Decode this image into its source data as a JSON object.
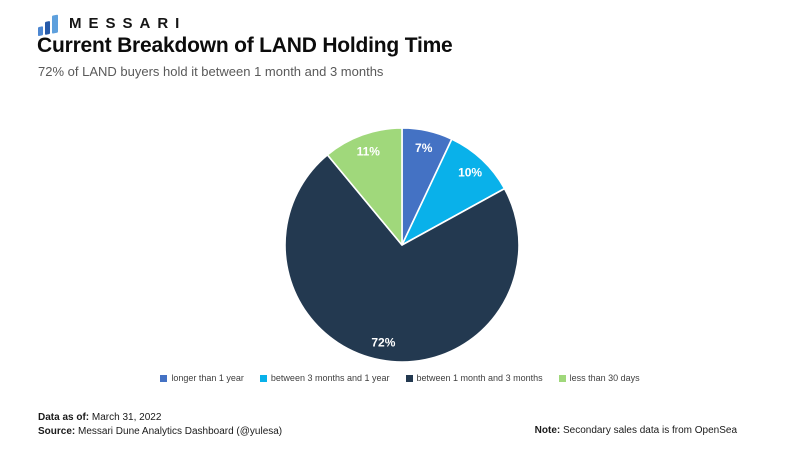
{
  "brand": {
    "logo_text": "MESSARI",
    "logo_icon_colors": {
      "bar1": "#4d87d1",
      "bar2": "#265aa9",
      "bar3": "#5ea0dd"
    }
  },
  "header": {
    "title": "Current Breakdown of LAND Holding Time",
    "subtitle": "72% of LAND buyers hold it between 1 month and 3 months"
  },
  "chart_data": {
    "type": "pie",
    "title": "Current Breakdown of LAND Holding Time",
    "start_angle_deg": 0,
    "direction": "clockwise",
    "legend_position": "bottom",
    "label_color": "#ffffff",
    "slices": [
      {
        "label": "longer than 1 year",
        "value": 7,
        "display": "7%",
        "color": "#4472c4"
      },
      {
        "label": "between 3 months and 1 year",
        "value": 10,
        "display": "10%",
        "color": "#09b1ea"
      },
      {
        "label": "between 1 month and 3 months",
        "value": 72,
        "display": "72%",
        "color": "#233950"
      },
      {
        "label": "less than 30 days",
        "value": 11,
        "display": "11%",
        "color": "#a0d87b"
      }
    ]
  },
  "footer": {
    "data_as_of_label": "Data as of:",
    "data_as_of_value": "March 31, 2022",
    "source_label": "Source:",
    "source_value": "Messari Dune Analytics Dashboard (@yulesa)",
    "note_label": "Note:",
    "note_value": "Secondary sales data is from OpenSea"
  }
}
